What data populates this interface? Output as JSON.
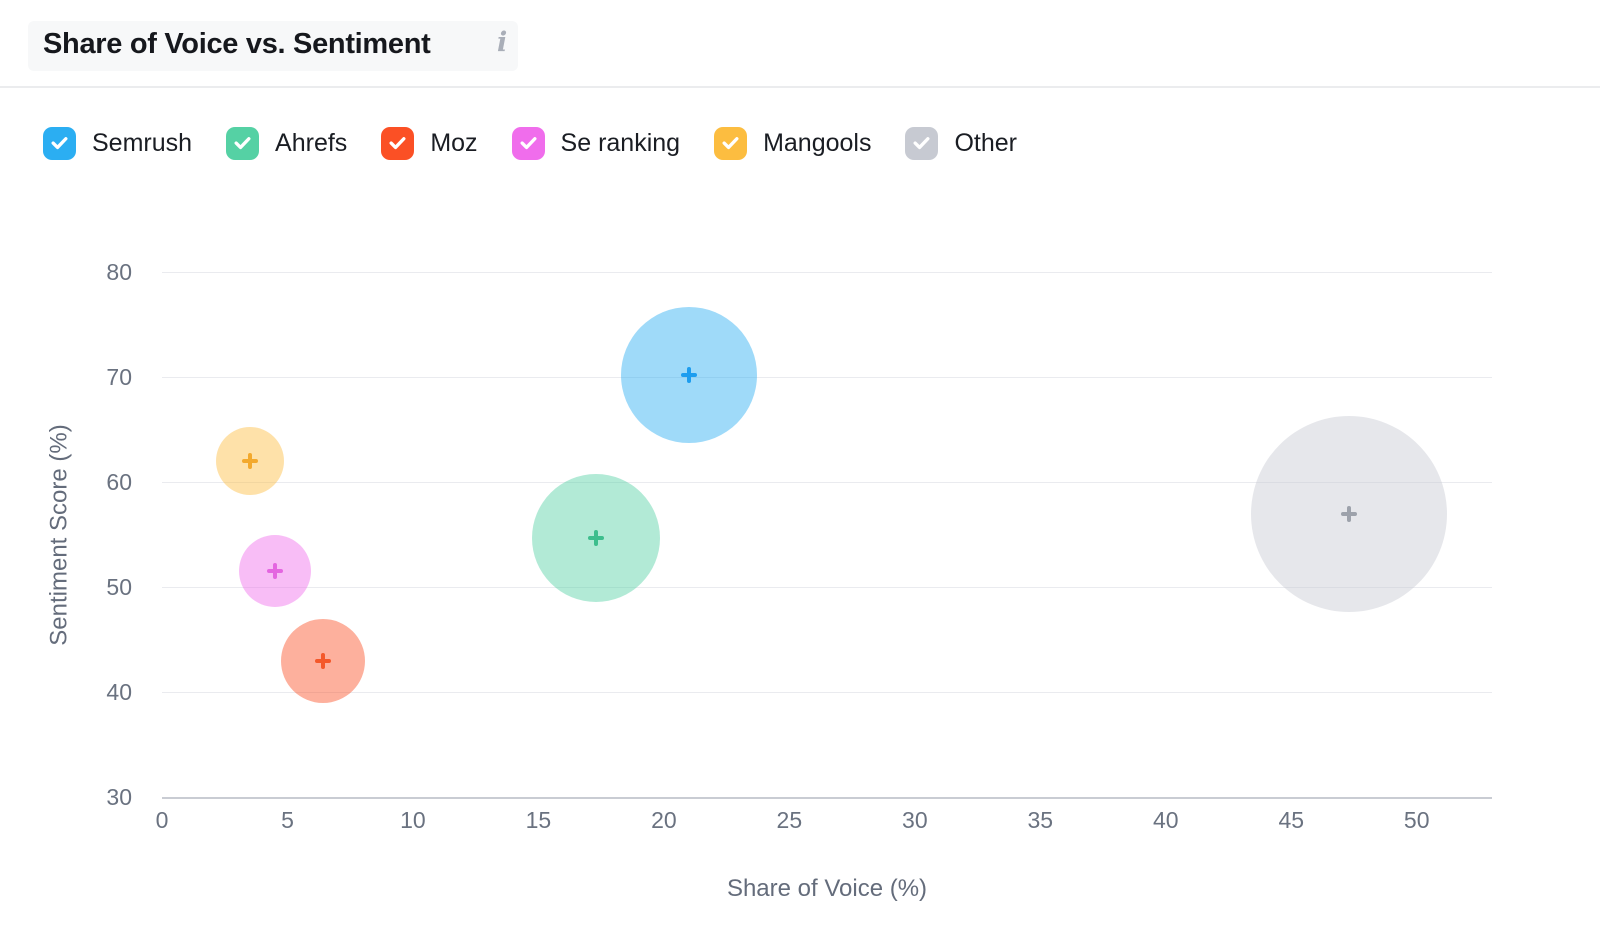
{
  "header": {
    "title": "Share of Voice vs. Sentiment",
    "info_icon": "i"
  },
  "chart_data": {
    "type": "scatter",
    "subtype": "bubble",
    "title": "Share of Voice vs. Sentiment",
    "xlabel": "Share of Voice (%)",
    "ylabel": "Sentiment Score (%)",
    "xlim": [
      0,
      53
    ],
    "ylim": [
      30,
      80
    ],
    "x_ticks": [
      0,
      5,
      10,
      15,
      20,
      25,
      30,
      35,
      40,
      45,
      50
    ],
    "y_ticks": [
      30,
      40,
      50,
      60,
      70,
      80
    ],
    "grid": "horizontal",
    "legend_position": "top",
    "marker": "plus",
    "series": [
      {
        "name": "Semrush",
        "x": 21.0,
        "y": 70.2,
        "radius_px": 68,
        "color": "#2BAEF2",
        "marker_color": "#1D9DEF",
        "checked": true
      },
      {
        "name": "Ahrefs",
        "x": 17.3,
        "y": 54.7,
        "radius_px": 64,
        "color": "#55D1A4",
        "marker_color": "#3DBE8D",
        "checked": true
      },
      {
        "name": "Moz",
        "x": 6.4,
        "y": 43.0,
        "radius_px": 42,
        "color": "#FB5025",
        "marker_color": "#F4582A",
        "checked": true
      },
      {
        "name": "Se ranking",
        "x": 4.5,
        "y": 51.5,
        "radius_px": 36,
        "color": "#F06DEC",
        "marker_color": "#E466E0",
        "checked": true
      },
      {
        "name": "Mangools",
        "x": 3.5,
        "y": 62.0,
        "radius_px": 34,
        "color": "#FCBD40",
        "marker_color": "#F3A92D",
        "checked": true
      },
      {
        "name": "Other",
        "x": 47.3,
        "y": 57.0,
        "radius_px": 98,
        "color": "#C7CAD2",
        "marker_color": "#9DA2AB",
        "checked": true
      }
    ]
  },
  "colors": {
    "title_text": "#16181D",
    "legend_text": "#1A1D23",
    "axis_text": "#6A7280",
    "gridline": "#EAEBEF",
    "axis_line": "#C9CCD3",
    "divider": "#EBECEE",
    "info_icon": "#A9AEB8",
    "bubble_fill_alpha": "0.45"
  }
}
